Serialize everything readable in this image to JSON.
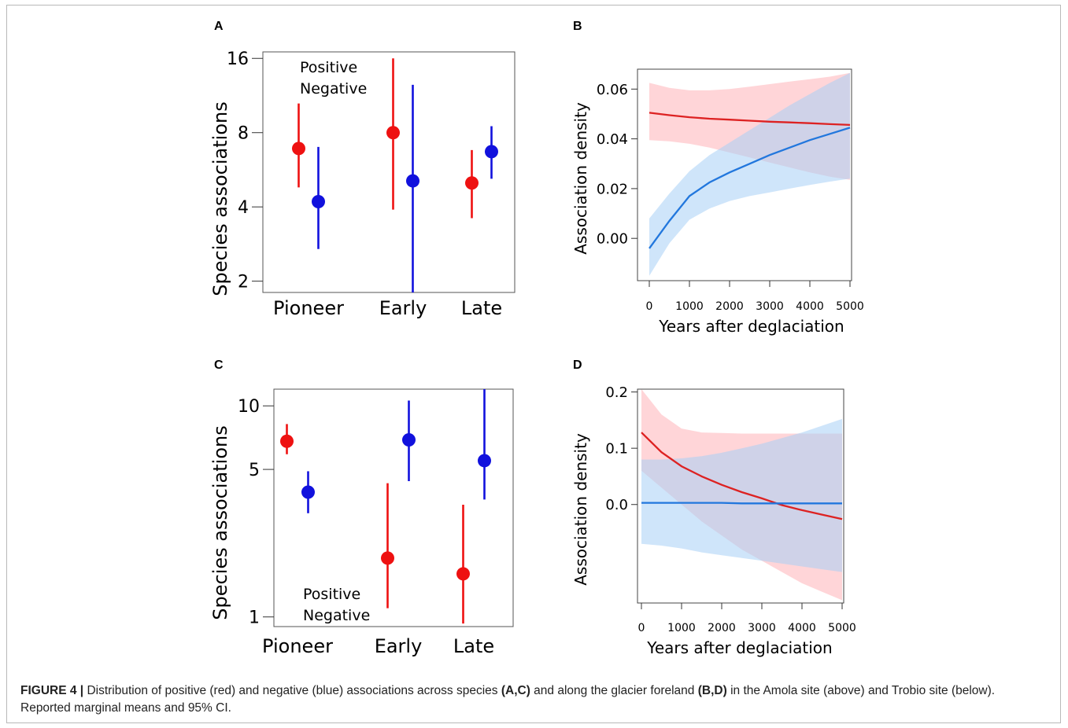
{
  "colors": {
    "positive": "#ee1111",
    "negative": "#1111dd",
    "line_pos": "#dd2222",
    "line_neg": "#2277dd",
    "band_pos": "#ffb3b8",
    "band_neg": "#a8cff5"
  },
  "caption": {
    "label": "FIGURE 4 |",
    "seg1": " Distribution of positive (red) and negative (blue) associations across species ",
    "ref1": "(A,C)",
    "seg2": " and along the glacier foreland ",
    "ref2": "(B,D)",
    "seg3": " in the Amola site (above) and Trobio site (below). Reported marginal means and 95% CI."
  },
  "chart_data": [
    {
      "panel": "A",
      "type": "scatter",
      "ylabel": "Species associations",
      "y_scale": "log2",
      "ylim": [
        1.8,
        17
      ],
      "y_ticks": [
        "2",
        "4",
        "8",
        "16"
      ],
      "categories": [
        "Pioneer",
        "Early",
        "Late"
      ],
      "legend": [
        "Positive",
        "Negative"
      ],
      "series": [
        {
          "name": "Positive",
          "mean": [
            6.9,
            8.0,
            5.0
          ],
          "lower": [
            4.8,
            3.9,
            3.6
          ],
          "upper": [
            10.5,
            16.0,
            6.8
          ]
        },
        {
          "name": "Negative",
          "mean": [
            4.2,
            5.1,
            6.7
          ],
          "lower": [
            2.7,
            1.8,
            5.2
          ],
          "upper": [
            7.0,
            12.5,
            8.5
          ]
        }
      ]
    },
    {
      "panel": "B",
      "type": "line",
      "xlabel": "Years after deglaciation",
      "ylabel": "Association density",
      "xlim": [
        0,
        5000
      ],
      "ylim": [
        -0.017,
        0.068
      ],
      "x_ticks": [
        "0",
        "1000",
        "2000",
        "3000",
        "4000",
        "5000"
      ],
      "y_ticks": [
        "0.00",
        "0.02",
        "0.04",
        "0.06"
      ],
      "x": [
        0,
        500,
        1000,
        1500,
        2000,
        2500,
        3000,
        3500,
        4000,
        4500,
        5000
      ],
      "series": [
        {
          "values": [
            0.0505,
            0.0495,
            0.0487,
            0.0481,
            0.0477,
            0.0473,
            0.0469,
            0.0466,
            0.0463,
            0.0459,
            0.0456
          ],
          "lower": [
            0.0395,
            0.039,
            0.038,
            0.0365,
            0.0345,
            0.0325,
            0.0305,
            0.0285,
            0.0265,
            0.0248,
            0.0235
          ],
          "upper": [
            0.0625,
            0.0605,
            0.0595,
            0.0595,
            0.06,
            0.061,
            0.062,
            0.063,
            0.064,
            0.065,
            0.0665
          ]
        },
        {
          "values": [
            -0.004,
            0.007,
            0.017,
            0.0225,
            0.0265,
            0.03,
            0.0335,
            0.0365,
            0.0395,
            0.042,
            0.0445
          ],
          "lower": [
            -0.015,
            -0.002,
            0.0075,
            0.012,
            0.015,
            0.017,
            0.0185,
            0.02,
            0.0215,
            0.0228,
            0.024
          ],
          "upper": [
            0.008,
            0.018,
            0.027,
            0.0335,
            0.0385,
            0.0435,
            0.0485,
            0.0535,
            0.058,
            0.0625,
            0.0665
          ]
        }
      ]
    },
    {
      "panel": "C",
      "type": "scatter",
      "ylabel": "Species associations",
      "y_scale": "log",
      "ylim": [
        0.9,
        12
      ],
      "y_ticks": [
        "1",
        "5",
        "10"
      ],
      "categories": [
        "Pioneer",
        "Early",
        "Late"
      ],
      "legend": [
        "Positive",
        "Negative"
      ],
      "series": [
        {
          "name": "Positive",
          "mean": [
            6.8,
            1.9,
            1.6
          ],
          "lower": [
            5.9,
            1.1,
            0.93
          ],
          "upper": [
            8.2,
            4.3,
            3.4
          ]
        },
        {
          "name": "Negative",
          "mean": [
            3.9,
            6.9,
            5.5
          ],
          "lower": [
            3.1,
            4.4,
            3.6
          ],
          "upper": [
            4.9,
            10.6,
            12.0
          ]
        }
      ]
    },
    {
      "panel": "D",
      "type": "line",
      "xlabel": "Years after deglaciation",
      "ylabel": "Association density",
      "xlim": [
        0,
        5000
      ],
      "ylim": [
        -0.175,
        0.205
      ],
      "x_ticks": [
        "0",
        "1000",
        "2000",
        "3000",
        "4000",
        "5000"
      ],
      "y_ticks": [
        "0.0",
        "0.1",
        "0.2"
      ],
      "x": [
        0,
        500,
        1000,
        1500,
        2000,
        2500,
        3000,
        3500,
        4000,
        4500,
        5000
      ],
      "series": [
        {
          "values": [
            0.128,
            0.093,
            0.068,
            0.05,
            0.035,
            0.022,
            0.011,
            -0.001,
            -0.01,
            -0.018,
            -0.026
          ],
          "lower": [
            0.06,
            0.03,
            0.0,
            -0.03,
            -0.055,
            -0.08,
            -0.1,
            -0.12,
            -0.14,
            -0.155,
            -0.17
          ],
          "upper": [
            0.205,
            0.16,
            0.135,
            0.128,
            0.127,
            0.126,
            0.126,
            0.126,
            0.126,
            0.126,
            0.126
          ]
        },
        {
          "values": [
            0.003,
            0.003,
            0.003,
            0.003,
            0.003,
            0.002,
            0.002,
            0.002,
            0.002,
            0.002,
            0.002
          ],
          "lower": [
            -0.07,
            -0.073,
            -0.078,
            -0.085,
            -0.09,
            -0.095,
            -0.1,
            -0.105,
            -0.11,
            -0.115,
            -0.12
          ],
          "upper": [
            0.08,
            0.08,
            0.082,
            0.086,
            0.092,
            0.1,
            0.108,
            0.118,
            0.128,
            0.14,
            0.152
          ]
        }
      ]
    }
  ]
}
